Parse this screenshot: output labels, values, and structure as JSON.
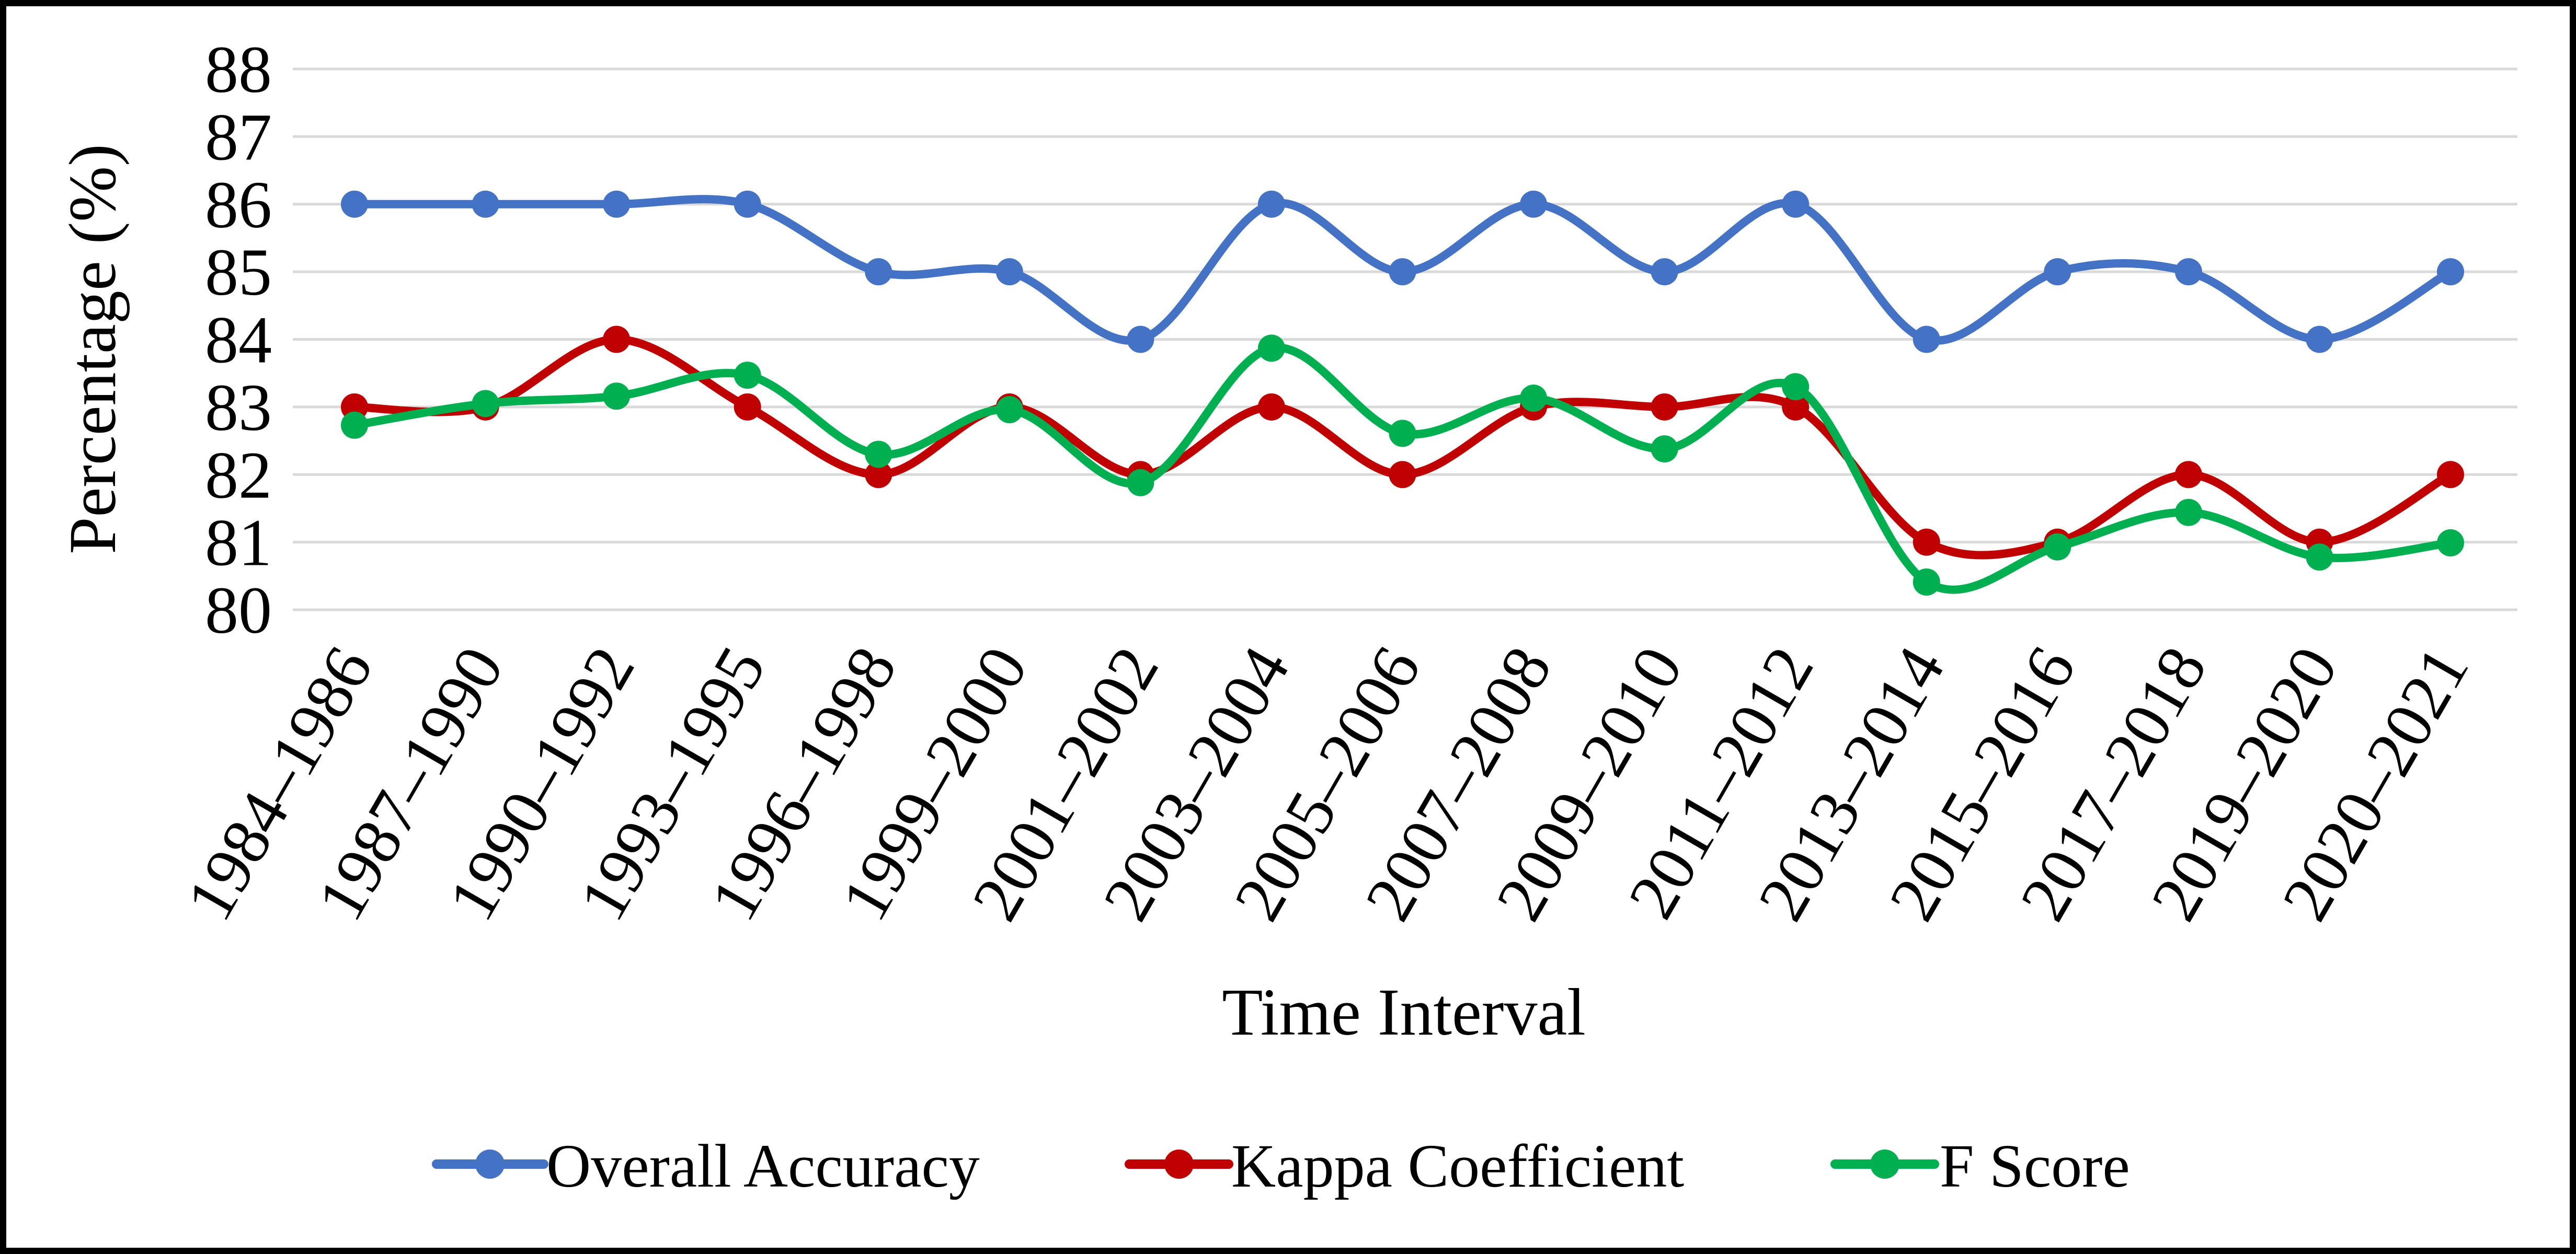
{
  "chart_data": {
    "type": "line",
    "title": "",
    "xlabel": "Time Interval",
    "ylabel": "Percentage (%)",
    "ylim": [
      80,
      88
    ],
    "yticks": [
      "80",
      "81",
      "82",
      "83",
      "84",
      "85",
      "86",
      "87",
      "88"
    ],
    "grid": true,
    "legend_position": "bottom",
    "smooth": true,
    "categories": [
      "1984–1986",
      "1987–1990",
      "1990–1992",
      "1993–1995",
      "1996–1998",
      "1999–2000",
      "2001–2002",
      "2003–2004",
      "2005–2006",
      "2007–2008",
      "2009–2010",
      "2011–2012",
      "2013–2014",
      "2015–2016",
      "2017–2018",
      "2019–2020",
      "2020–2021"
    ],
    "series": [
      {
        "name": "Overall Accuracy",
        "color": "#4472c4",
        "values": [
          86,
          86,
          86,
          86,
          85,
          85,
          84,
          86,
          85,
          86,
          85,
          86,
          84,
          85,
          85,
          84,
          85
        ]
      },
      {
        "name": "Kappa Coefficient",
        "color": "#c00000",
        "values": [
          83,
          83,
          84,
          83,
          82,
          83,
          82,
          83,
          82,
          83,
          83,
          83,
          81,
          81,
          82,
          81,
          82
        ]
      },
      {
        "name": "F Score",
        "color": "#00b050",
        "values": [
          82.73,
          83.05,
          83.16,
          83.47,
          82.3,
          82.96,
          81.88,
          83.87,
          82.61,
          83.13,
          82.38,
          83.3,
          80.41,
          80.93,
          81.44,
          80.78,
          80.99
        ]
      }
    ]
  }
}
